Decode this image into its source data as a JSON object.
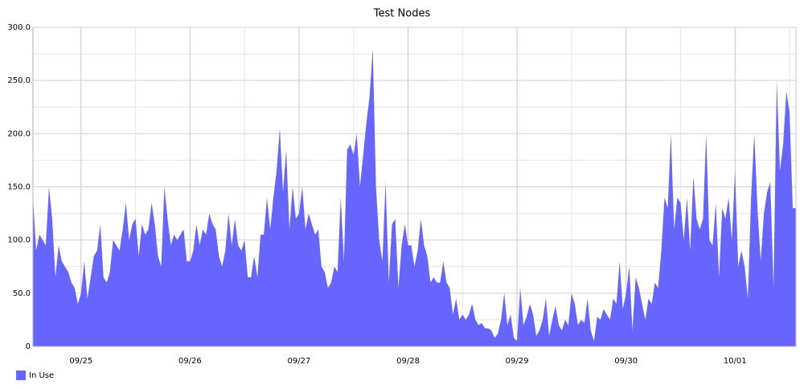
{
  "chart_data": {
    "type": "area",
    "title": "Test Nodes",
    "categories": [
      null,
      null,
      null,
      null,
      null,
      null,
      null,
      null,
      null,
      null,
      null,
      null,
      null,
      null,
      null,
      "09/25",
      null,
      null,
      null,
      null,
      null,
      null,
      null,
      null,
      null,
      null,
      null,
      null,
      null,
      null,
      null,
      null,
      null,
      null,
      null,
      null,
      null,
      null,
      null,
      null,
      null,
      null,
      null,
      null,
      null,
      null,
      null,
      null,
      null,
      "09/26",
      null,
      null,
      null,
      null,
      null,
      null,
      null,
      null,
      null,
      null,
      null,
      null,
      null,
      null,
      null,
      null,
      null,
      null,
      null,
      null,
      null,
      null,
      null,
      null,
      null,
      null,
      null,
      null,
      null,
      null,
      null,
      null,
      null,
      "09/27",
      null,
      null,
      null,
      null,
      null,
      null,
      null,
      null,
      null,
      null,
      null,
      null,
      null,
      null,
      null,
      null,
      null,
      null,
      null,
      null,
      null,
      null,
      null,
      null,
      null,
      null,
      null,
      null,
      null,
      null,
      null,
      null,
      null,
      "09/28",
      null,
      null,
      null,
      null,
      null,
      null,
      null,
      null,
      null,
      null,
      null,
      null,
      null,
      null,
      null,
      null,
      null,
      null,
      null,
      null,
      null,
      null,
      null,
      null,
      null,
      null,
      null,
      null,
      null,
      null,
      null,
      null,
      null,
      "09/29",
      null,
      null,
      null,
      null,
      null,
      null,
      null,
      null,
      null,
      null,
      null,
      null,
      null,
      null,
      null,
      null,
      null,
      null,
      null,
      null,
      null,
      null,
      null,
      null,
      null,
      null,
      null,
      null,
      null,
      null,
      null,
      null,
      null,
      "09/30",
      null,
      null,
      null,
      null,
      null,
      null,
      null,
      null,
      null,
      null,
      null,
      null,
      null,
      null,
      null,
      null,
      null,
      null,
      null,
      null,
      null,
      null,
      null,
      null,
      null,
      null,
      null,
      null,
      null,
      null,
      null,
      null,
      null,
      "10/01",
      null,
      null,
      null,
      null,
      null,
      null,
      null,
      null,
      null,
      null,
      null,
      null,
      null,
      null,
      null,
      null,
      null,
      null,
      null
    ],
    "series": [
      {
        "name": "In Use",
        "color": "#6666ff",
        "values": [
          140,
          90,
          105,
          100,
          95,
          150,
          120,
          65,
          95,
          80,
          75,
          70,
          60,
          55,
          40,
          50,
          80,
          45,
          65,
          85,
          90,
          115,
          65,
          60,
          70,
          100,
          95,
          90,
          110,
          135,
          100,
          115,
          120,
          85,
          115,
          105,
          110,
          135,
          115,
          85,
          75,
          150,
          120,
          95,
          105,
          100,
          105,
          110,
          80,
          80,
          90,
          115,
          95,
          110,
          105,
          125,
          115,
          110,
          85,
          75,
          90,
          125,
          95,
          120,
          95,
          90,
          100,
          65,
          65,
          85,
          65,
          105,
          105,
          140,
          110,
          140,
          165,
          205,
          145,
          185,
          110,
          150,
          120,
          125,
          150,
          110,
          125,
          115,
          105,
          110,
          75,
          70,
          55,
          60,
          75,
          70,
          140,
          80,
          185,
          190,
          180,
          200,
          150,
          180,
          210,
          235,
          280,
          150,
          100,
          80,
          155,
          60,
          115,
          120,
          55,
          95,
          115,
          95,
          95,
          75,
          90,
          120,
          95,
          85,
          60,
          65,
          60,
          60,
          80,
          60,
          55,
          30,
          45,
          25,
          30,
          25,
          30,
          40,
          25,
          20,
          22,
          17,
          17,
          15,
          8,
          12,
          25,
          50,
          20,
          30,
          8,
          5,
          55,
          20,
          28,
          40,
          30,
          10,
          15,
          25,
          45,
          10,
          25,
          38,
          20,
          15,
          25,
          20,
          50,
          40,
          20,
          25,
          22,
          45,
          15,
          5,
          28,
          25,
          35,
          30,
          25,
          45,
          40,
          80,
          35,
          50,
          75,
          15,
          65,
          55,
          40,
          25,
          45,
          40,
          60,
          55,
          90,
          140,
          130,
          200,
          110,
          140,
          135,
          100,
          140,
          90,
          160,
          120,
          110,
          120,
          200,
          100,
          95,
          135,
          65,
          130,
          120,
          140,
          100,
          165,
          75,
          90,
          75,
          45,
          140,
          200,
          130,
          80,
          125,
          145,
          155,
          55,
          250,
          165,
          190,
          240,
          220,
          130,
          130
        ]
      }
    ],
    "ylim": [
      0,
      300
    ],
    "yticks": [
      0,
      {
        "value": 50,
        "label": "50.0"
      },
      {
        "value": 100,
        "label": "100.0"
      },
      {
        "value": 150,
        "label": "150.0"
      },
      {
        "value": 200,
        "label": "200.0"
      },
      {
        "value": 250,
        "label": "250.0"
      },
      {
        "value": 300,
        "label": "300.0"
      }
    ],
    "grid": true,
    "legend": "bottom-left"
  }
}
